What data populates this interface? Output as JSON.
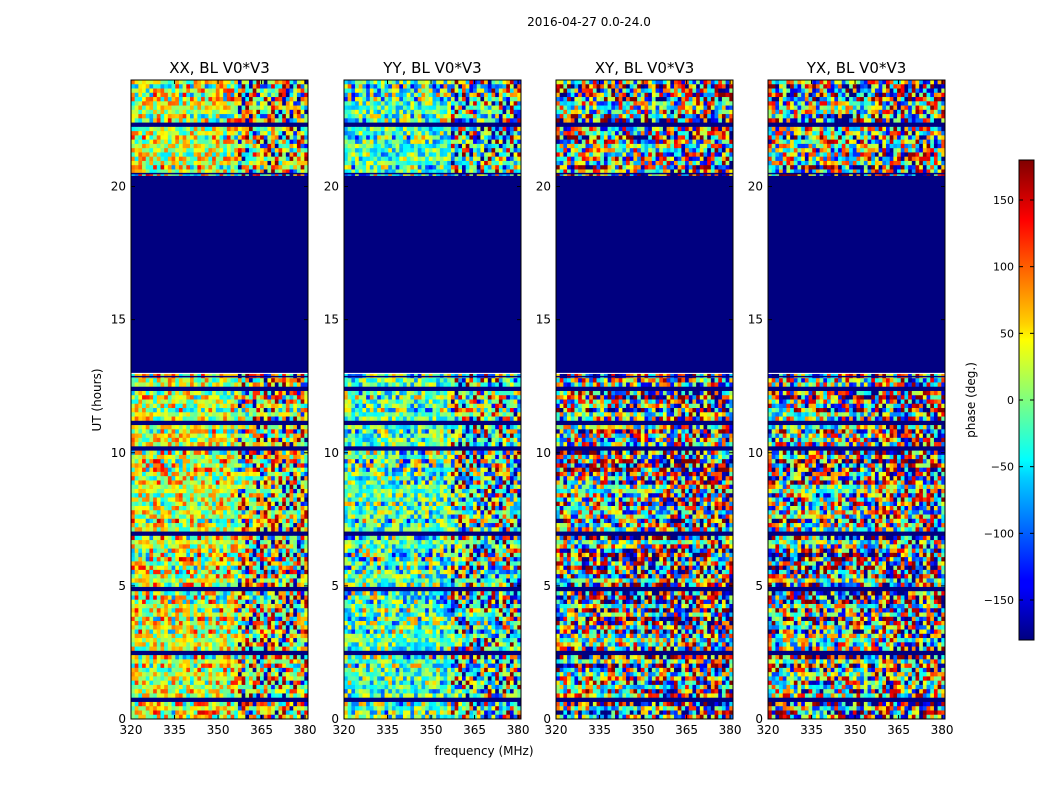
{
  "chart_data": {
    "type": "heatmap",
    "title": "2016-04-27 0.0-24.0",
    "xlabel": "frequency (MHz)",
    "ylabel": "UT (hours)",
    "xlim": [
      320,
      381
    ],
    "ylim": [
      0,
      24
    ],
    "xticks": [
      "320",
      "335",
      "350",
      "365",
      "380"
    ],
    "xtick_values": [
      320,
      335,
      350,
      365,
      380
    ],
    "yticks": [
      "0",
      "5",
      "10",
      "15",
      "20"
    ],
    "ytick_values": [
      0,
      5,
      10,
      15,
      20
    ],
    "colorbar": {
      "label": "phase (deg.)",
      "range": [
        -180,
        180
      ],
      "ticks": [
        "150",
        "100",
        "50",
        "0",
        "−50",
        "−100",
        "−150"
      ],
      "tick_values": [
        150,
        100,
        50,
        0,
        -50,
        -100,
        -150
      ],
      "colormap": "jet"
    },
    "panels": [
      {
        "title": "XX, BL V0*V3",
        "flagged_gap_hours": [
          13.0,
          20.4
        ]
      },
      {
        "title": "YY, BL V0*V3",
        "flagged_gap_hours": [
          13.0,
          20.4
        ]
      },
      {
        "title": "XY, BL V0*V3",
        "flagged_gap_hours": [
          13.0,
          20.4
        ]
      },
      {
        "title": "YX, BL V0*V3",
        "flagged_gap_hours": [
          13.0,
          20.4
        ]
      }
    ]
  }
}
